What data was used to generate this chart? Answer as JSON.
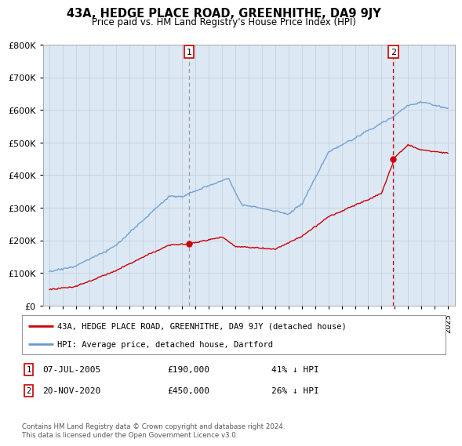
{
  "title": "43A, HEDGE PLACE ROAD, GREENHITHE, DA9 9JY",
  "subtitle": "Price paid vs. HM Land Registry's House Price Index (HPI)",
  "legend_line1": "43A, HEDGE PLACE ROAD, GREENHITHE, DA9 9JY (detached house)",
  "legend_line2": "HPI: Average price, detached house, Dartford",
  "annotation1_date": "07-JUL-2005",
  "annotation1_price": "£190,000",
  "annotation1_hpi": "41% ↓ HPI",
  "annotation2_date": "20-NOV-2020",
  "annotation2_price": "£450,000",
  "annotation2_hpi": "26% ↓ HPI",
  "footer": "Contains HM Land Registry data © Crown copyright and database right 2024.\nThis data is licensed under the Open Government Licence v3.0.",
  "sale1_year": 2005.52,
  "sale1_price": 190000,
  "sale2_year": 2020.89,
  "sale2_price": 450000,
  "ylim": [
    0,
    800000
  ],
  "xlim": [
    1994.5,
    2025.5
  ],
  "bg_color": "#dde8f5",
  "grid_color": "#c8d4e0",
  "red_color": "#cc0000",
  "blue_color": "#6699cc",
  "box_color": "#cc0000"
}
